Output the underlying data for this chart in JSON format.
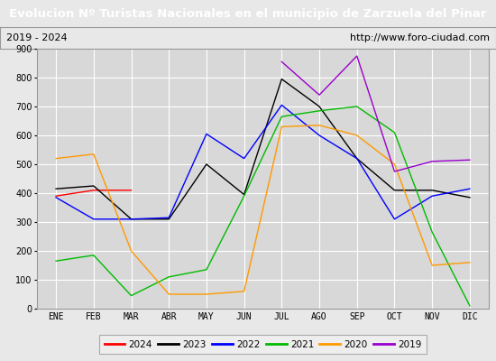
{
  "title": "Evolucion Nº Turistas Nacionales en el municipio de Zarzuela del Pinar",
  "subtitle_left": "2019 - 2024",
  "subtitle_right": "http://www.foro-ciudad.com",
  "title_bg_color": "#4472c4",
  "title_text_color": "#ffffff",
  "months": [
    "ENE",
    "FEB",
    "MAR",
    "ABR",
    "MAY",
    "JUN",
    "JUL",
    "AGO",
    "SEP",
    "OCT",
    "NOV",
    "DIC"
  ],
  "ylim": [
    0,
    900
  ],
  "yticks": [
    0,
    100,
    200,
    300,
    400,
    500,
    600,
    700,
    800,
    900
  ],
  "series": {
    "2024": {
      "color": "#ff0000",
      "data": [
        390,
        410,
        410,
        null,
        null,
        null,
        null,
        null,
        null,
        null,
        null,
        null
      ]
    },
    "2023": {
      "color": "#000000",
      "data": [
        415,
        425,
        310,
        310,
        500,
        395,
        795,
        700,
        520,
        410,
        410,
        385
      ]
    },
    "2022": {
      "color": "#0000ff",
      "data": [
        385,
        310,
        310,
        315,
        605,
        520,
        705,
        600,
        520,
        310,
        390,
        415
      ]
    },
    "2021": {
      "color": "#00bb00",
      "data": [
        165,
        185,
        45,
        110,
        135,
        390,
        665,
        685,
        700,
        610,
        265,
        10
      ]
    },
    "2020": {
      "color": "#ff9900",
      "data": [
        520,
        535,
        200,
        50,
        50,
        60,
        630,
        635,
        600,
        500,
        150,
        160
      ]
    },
    "2019": {
      "color": "#9900cc",
      "data": [
        null,
        null,
        null,
        null,
        null,
        null,
        855,
        740,
        875,
        475,
        510,
        515
      ]
    }
  },
  "legend_order": [
    "2024",
    "2023",
    "2022",
    "2021",
    "2020",
    "2019"
  ],
  "bg_color": "#e8e8e8",
  "plot_bg_color": "#d8d8d8",
  "grid_color": "#ffffff",
  "border_color": "#999999"
}
